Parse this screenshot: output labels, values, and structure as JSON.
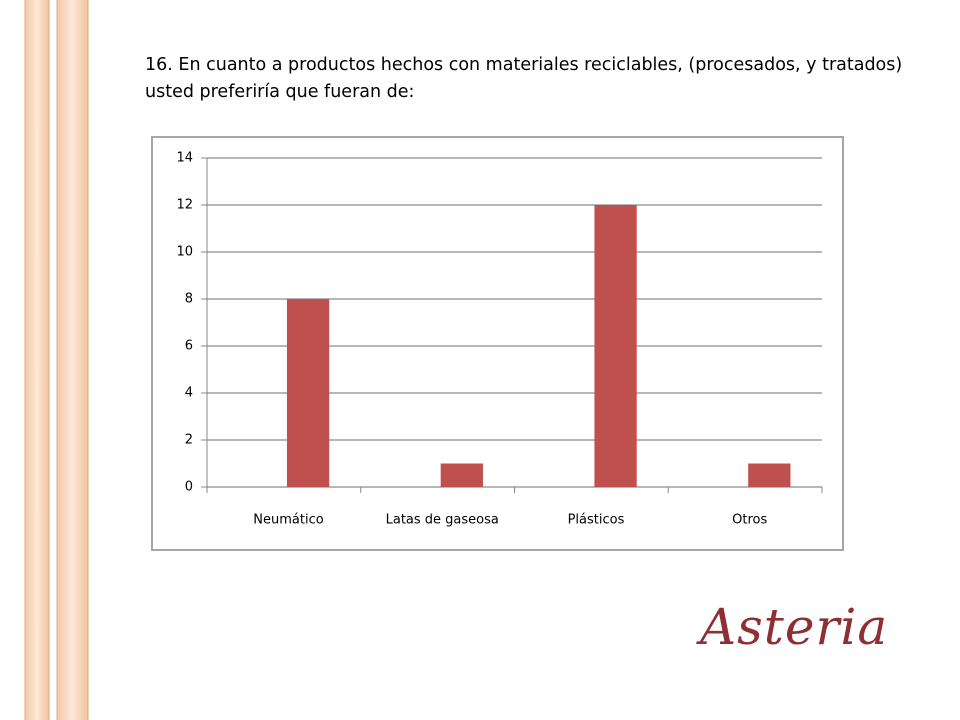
{
  "slide": {
    "logo": "Asteria"
  },
  "chart_data": {
    "type": "bar",
    "title": "16. En cuanto a productos hechos con materiales reciclables, (procesados, y tratados) usted preferiría que fueran de:",
    "categories": [
      "Neumático",
      "Latas de gaseosa",
      "Plásticos",
      "Otros"
    ],
    "values": [
      8,
      1,
      12,
      1
    ],
    "color": "#c0504d",
    "ylim": [
      0,
      14
    ],
    "yticks": [
      0,
      2,
      4,
      6,
      8,
      10,
      12,
      14
    ],
    "grid": true
  }
}
